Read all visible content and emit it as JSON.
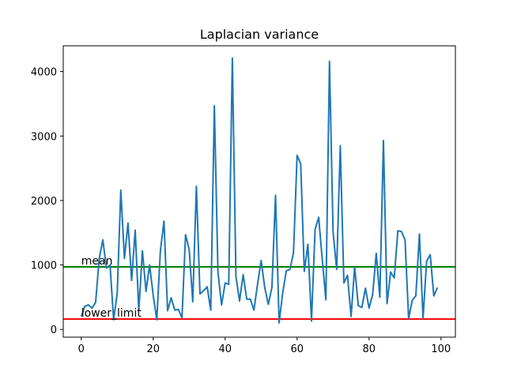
{
  "chart_data": {
    "type": "line",
    "title": "Laplacian variance",
    "xlabel": "",
    "ylabel": "",
    "xlim": [
      -5,
      104
    ],
    "ylim": [
      -120,
      4400
    ],
    "xticks": [
      0,
      20,
      40,
      60,
      80,
      100
    ],
    "yticks": [
      0,
      1000,
      2000,
      3000,
      4000
    ],
    "grid": false,
    "series": [
      {
        "color": "#1f77b4",
        "x": [
          0,
          1,
          2,
          3,
          4,
          5,
          6,
          7,
          8,
          9,
          10,
          11,
          12,
          13,
          14,
          15,
          16,
          17,
          18,
          19,
          20,
          21,
          22,
          23,
          24,
          25,
          26,
          27,
          28,
          29,
          30,
          31,
          32,
          33,
          34,
          35,
          36,
          37,
          38,
          39,
          40,
          41,
          42,
          43,
          44,
          45,
          46,
          47,
          48,
          49,
          50,
          51,
          52,
          53,
          54,
          55,
          56,
          57,
          58,
          59,
          60,
          61,
          62,
          63,
          64,
          65,
          66,
          67,
          68,
          69,
          70,
          71,
          72,
          73,
          74,
          75,
          76,
          77,
          78,
          79,
          80,
          81,
          82,
          83,
          84,
          85,
          86,
          87,
          88,
          89,
          90,
          91,
          92,
          93,
          94,
          95,
          96,
          97,
          98,
          99
        ],
        "y": [
          200,
          360,
          380,
          330,
          420,
          1100,
          1390,
          950,
          1000,
          150,
          560,
          2160,
          1100,
          1650,
          760,
          1540,
          290,
          1220,
          590,
          1000,
          530,
          150,
          1220,
          1680,
          290,
          490,
          300,
          310,
          180,
          1470,
          1240,
          430,
          2220,
          550,
          600,
          660,
          300,
          3470,
          890,
          380,
          720,
          700,
          4210,
          820,
          440,
          850,
          470,
          470,
          300,
          700,
          1070,
          650,
          390,
          650,
          2080,
          100,
          570,
          910,
          930,
          1190,
          2700,
          2570,
          900,
          1320,
          130,
          1550,
          1740,
          1080,
          460,
          4160,
          1510,
          930,
          2850,
          720,
          840,
          200,
          970,
          370,
          340,
          640,
          330,
          540,
          1180,
          500,
          2930,
          400,
          890,
          800,
          1530,
          1520,
          1390,
          170,
          450,
          520,
          1480,
          170,
          1060,
          1160,
          520,
          650
        ]
      }
    ],
    "hlines": [
      {
        "value": 970,
        "label": "mean",
        "color": "#008000"
      },
      {
        "value": 160,
        "label": "lower_limit",
        "color": "#ff0000"
      }
    ]
  }
}
